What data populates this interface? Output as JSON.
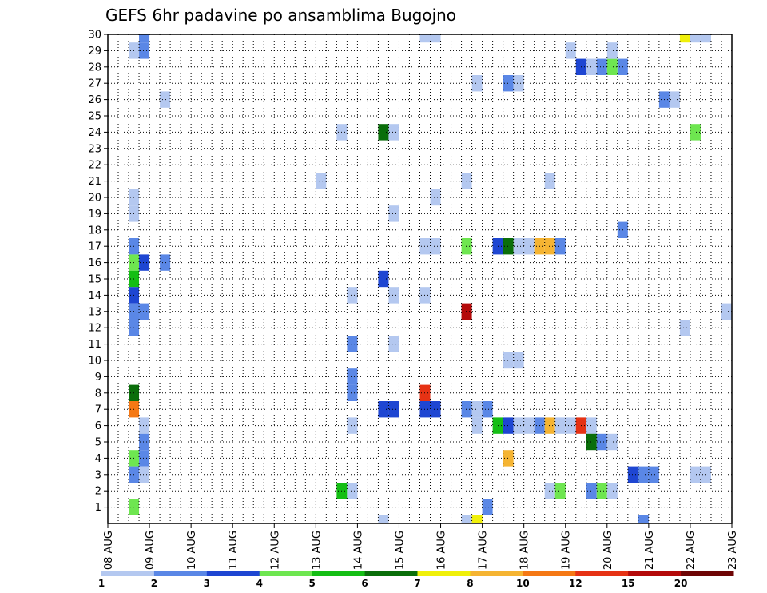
{
  "chart_data": {
    "type": "heatmap",
    "title": "GEFS 6hr padavine po ansamblima Bugojno",
    "x_ticks": [
      "08 AUG",
      "09 AUG",
      "10 AUG",
      "11 AUG",
      "12 AUG",
      "13 AUG",
      "14 AUG",
      "15 AUG",
      "16 AUG",
      "17 AUG",
      "18 AUG",
      "19 AUG",
      "20 AUG",
      "21 AUG",
      "22 AUG",
      "23 AUG"
    ],
    "y_ticks": [
      "1",
      "2",
      "3",
      "4",
      "5",
      "6",
      "7",
      "8",
      "9",
      "10",
      "11",
      "12",
      "13",
      "14",
      "15",
      "16",
      "17",
      "18",
      "19",
      "20",
      "21",
      "22",
      "23",
      "24",
      "25",
      "26",
      "27",
      "28",
      "29",
      "30"
    ],
    "x_range_days": [
      0,
      15
    ],
    "y_range": [
      0,
      30
    ],
    "grid": true,
    "colorbar": {
      "labels": [
        "1",
        "2",
        "3",
        "4",
        "5",
        "6",
        "7",
        "8",
        "10",
        "12",
        "15",
        "20"
      ],
      "colors": [
        "#b4c8f0",
        "#5a87e6",
        "#1e46d2",
        "#6ee650",
        "#14be14",
        "#0a6e0a",
        "#f0f00a",
        "#f5b432",
        "#f57814",
        "#e63214",
        "#b40a0a",
        "#6e0505"
      ],
      "placement": "bottom"
    },
    "cells": [
      {
        "t": 0.5,
        "m": 29,
        "c": 1
      },
      {
        "t": 0.75,
        "m": 29,
        "c": 2
      },
      {
        "t": 0.75,
        "m": 30,
        "c": 2
      },
      {
        "t": 0.5,
        "m": 20,
        "c": 1
      },
      {
        "t": 0.5,
        "m": 19,
        "c": 1
      },
      {
        "t": 0.5,
        "m": 17,
        "c": 2
      },
      {
        "t": 0.5,
        "m": 16,
        "c": 4
      },
      {
        "t": 0.75,
        "m": 16,
        "c": 3
      },
      {
        "t": 0.5,
        "m": 15,
        "c": 5
      },
      {
        "t": 0.5,
        "m": 14,
        "c": 3
      },
      {
        "t": 0.5,
        "m": 13,
        "c": 2
      },
      {
        "t": 0.75,
        "m": 13,
        "c": 2
      },
      {
        "t": 0.5,
        "m": 12,
        "c": 2
      },
      {
        "t": 0.5,
        "m": 8,
        "c": 6
      },
      {
        "t": 0.5,
        "m": 7,
        "c": 9
      },
      {
        "t": 0.75,
        "m": 6,
        "c": 1
      },
      {
        "t": 0.75,
        "m": 5,
        "c": 2
      },
      {
        "t": 0.5,
        "m": 4,
        "c": 4
      },
      {
        "t": 0.75,
        "m": 4,
        "c": 2
      },
      {
        "t": 0.5,
        "m": 3,
        "c": 2
      },
      {
        "t": 0.75,
        "m": 3,
        "c": 1
      },
      {
        "t": 0.5,
        "m": 1,
        "c": 4
      },
      {
        "t": 1.25,
        "m": 16,
        "c": 2
      },
      {
        "t": 1.25,
        "m": 26,
        "c": 1
      },
      {
        "t": 5.0,
        "m": 21,
        "c": 1
      },
      {
        "t": 5.5,
        "m": 24,
        "c": 1
      },
      {
        "t": 5.75,
        "m": 14,
        "c": 1
      },
      {
        "t": 5.75,
        "m": 11,
        "c": 2
      },
      {
        "t": 5.75,
        "m": 9,
        "c": 2
      },
      {
        "t": 5.75,
        "m": 8,
        "c": 2
      },
      {
        "t": 5.75,
        "m": 6,
        "c": 1
      },
      {
        "t": 5.5,
        "m": 2,
        "c": 5
      },
      {
        "t": 5.75,
        "m": 2,
        "c": 1
      },
      {
        "t": 6.5,
        "m": 24,
        "c": 6
      },
      {
        "t": 6.75,
        "m": 24,
        "c": 1
      },
      {
        "t": 6.5,
        "m": 15,
        "c": 3
      },
      {
        "t": 6.75,
        "m": 14,
        "c": 1
      },
      {
        "t": 6.75,
        "m": 11,
        "c": 1
      },
      {
        "t": 6.75,
        "m": 19,
        "c": 1
      },
      {
        "t": 6.5,
        "m": 7,
        "c": 3
      },
      {
        "t": 6.75,
        "m": 7,
        "c": 3
      },
      {
        "t": 6.5,
        "m": 0,
        "c": 1
      },
      {
        "t": 7.5,
        "m": 30,
        "c": 1
      },
      {
        "t": 7.75,
        "m": 30,
        "c": 1
      },
      {
        "t": 7.5,
        "m": 17,
        "c": 1
      },
      {
        "t": 7.75,
        "m": 17,
        "c": 1
      },
      {
        "t": 7.5,
        "m": 14,
        "c": 1
      },
      {
        "t": 7.75,
        "m": 20,
        "c": 1
      },
      {
        "t": 7.5,
        "m": 8,
        "c": 10
      },
      {
        "t": 7.5,
        "m": 7,
        "c": 3
      },
      {
        "t": 7.75,
        "m": 7,
        "c": 3
      },
      {
        "t": 8.5,
        "m": 21,
        "c": 1
      },
      {
        "t": 8.5,
        "m": 17,
        "c": 4
      },
      {
        "t": 8.5,
        "m": 13,
        "c": 11
      },
      {
        "t": 8.75,
        "m": 27,
        "c": 1
      },
      {
        "t": 8.5,
        "m": 7,
        "c": 2
      },
      {
        "t": 8.75,
        "m": 7,
        "c": 1
      },
      {
        "t": 8.75,
        "m": 6,
        "c": 1
      },
      {
        "t": 9.0,
        "m": 7,
        "c": 2
      },
      {
        "t": 9.0,
        "m": 1,
        "c": 2
      },
      {
        "t": 8.5,
        "m": 0,
        "c": 1
      },
      {
        "t": 8.75,
        "m": 0,
        "c": 7
      },
      {
        "t": 9.25,
        "m": 17,
        "c": 3
      },
      {
        "t": 9.5,
        "m": 17,
        "c": 6
      },
      {
        "t": 9.75,
        "m": 17,
        "c": 1
      },
      {
        "t": 10.0,
        "m": 17,
        "c": 1
      },
      {
        "t": 10.25,
        "m": 17,
        "c": 8
      },
      {
        "t": 10.5,
        "m": 17,
        "c": 8
      },
      {
        "t": 10.75,
        "m": 17,
        "c": 2
      },
      {
        "t": 9.5,
        "m": 27,
        "c": 2
      },
      {
        "t": 9.75,
        "m": 27,
        "c": 1
      },
      {
        "t": 9.5,
        "m": 10,
        "c": 1
      },
      {
        "t": 9.75,
        "m": 10,
        "c": 1
      },
      {
        "t": 9.5,
        "m": 4,
        "c": 8
      },
      {
        "t": 9.25,
        "m": 6,
        "c": 5
      },
      {
        "t": 9.5,
        "m": 6,
        "c": 3
      },
      {
        "t": 9.75,
        "m": 6,
        "c": 1
      },
      {
        "t": 10.0,
        "m": 6,
        "c": 1
      },
      {
        "t": 10.25,
        "m": 6,
        "c": 2
      },
      {
        "t": 10.5,
        "m": 6,
        "c": 8
      },
      {
        "t": 10.75,
        "m": 6,
        "c": 1
      },
      {
        "t": 11.0,
        "m": 6,
        "c": 1
      },
      {
        "t": 11.25,
        "m": 6,
        "c": 10
      },
      {
        "t": 11.5,
        "m": 6,
        "c": 1
      },
      {
        "t": 10.5,
        "m": 21,
        "c": 1
      },
      {
        "t": 10.5,
        "m": 2,
        "c": 1
      },
      {
        "t": 10.75,
        "m": 2,
        "c": 4
      },
      {
        "t": 11.0,
        "m": 29,
        "c": 1
      },
      {
        "t": 11.25,
        "m": 28,
        "c": 3
      },
      {
        "t": 11.5,
        "m": 28,
        "c": 1
      },
      {
        "t": 11.75,
        "m": 28,
        "c": 2
      },
      {
        "t": 12.0,
        "m": 28,
        "c": 4
      },
      {
        "t": 12.25,
        "m": 28,
        "c": 2
      },
      {
        "t": 12.0,
        "m": 29,
        "c": 1
      },
      {
        "t": 11.5,
        "m": 5,
        "c": 6
      },
      {
        "t": 11.75,
        "m": 5,
        "c": 2
      },
      {
        "t": 12.0,
        "m": 5,
        "c": 1
      },
      {
        "t": 11.5,
        "m": 2,
        "c": 2
      },
      {
        "t": 11.75,
        "m": 2,
        "c": 4
      },
      {
        "t": 12.0,
        "m": 2,
        "c": 1
      },
      {
        "t": 12.25,
        "m": 18,
        "c": 2
      },
      {
        "t": 12.5,
        "m": 3,
        "c": 3
      },
      {
        "t": 12.75,
        "m": 3,
        "c": 2
      },
      {
        "t": 13.0,
        "m": 3,
        "c": 2
      },
      {
        "t": 12.75,
        "m": 0,
        "c": 2
      },
      {
        "t": 13.25,
        "m": 26,
        "c": 2
      },
      {
        "t": 13.5,
        "m": 26,
        "c": 1
      },
      {
        "t": 13.75,
        "m": 30,
        "c": 7
      },
      {
        "t": 14.0,
        "m": 30,
        "c": 1
      },
      {
        "t": 14.25,
        "m": 30,
        "c": 1
      },
      {
        "t": 14.0,
        "m": 24,
        "c": 4
      },
      {
        "t": 13.75,
        "m": 12,
        "c": 1
      },
      {
        "t": 14.0,
        "m": 3,
        "c": 1
      },
      {
        "t": 14.25,
        "m": 3,
        "c": 1
      },
      {
        "t": 14.75,
        "m": 13,
        "c": 1
      },
      {
        "t": 15.0,
        "m": 1,
        "c": 1
      }
    ]
  }
}
